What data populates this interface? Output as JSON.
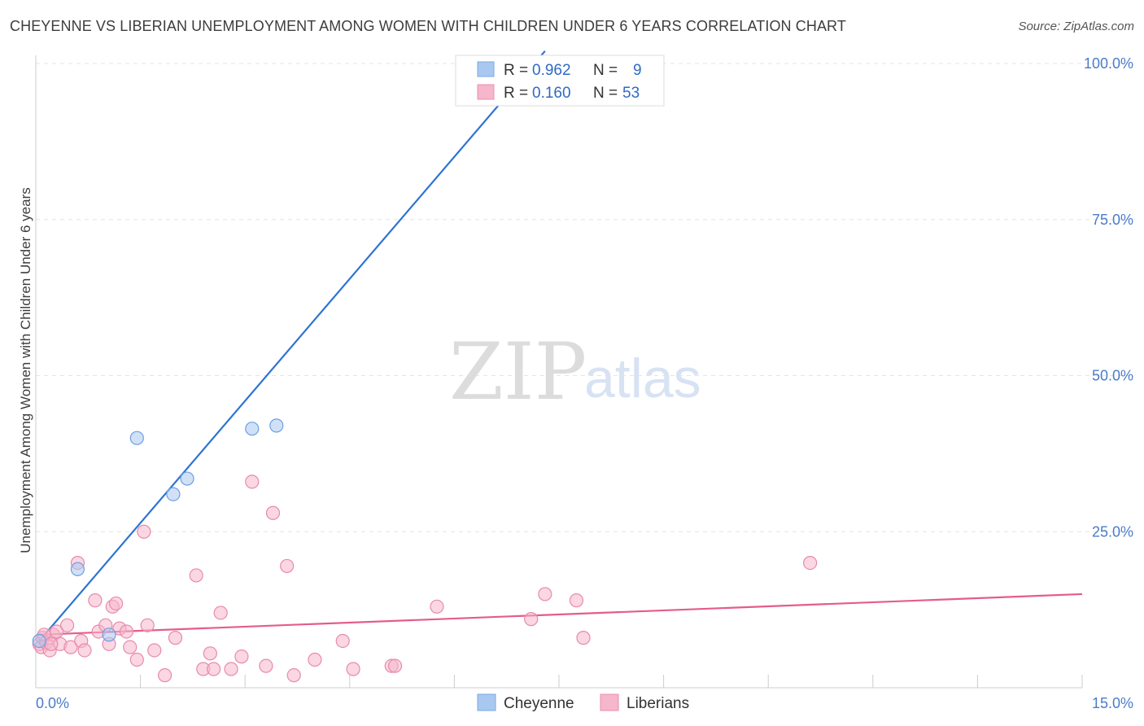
{
  "title": "CHEYENNE VS LIBERIAN UNEMPLOYMENT AMONG WOMEN WITH CHILDREN UNDER 6 YEARS CORRELATION CHART",
  "source": "Source: ZipAtlas.com",
  "watermark": {
    "zip": "ZIP",
    "atlas": "atlas"
  },
  "legend_top": {
    "rows": [
      {
        "r_label": "R =",
        "r_value": "0.962",
        "n_label": "N =",
        "n_value": "9"
      },
      {
        "r_label": "R =",
        "r_value": "0.160",
        "n_label": "N =",
        "n_value": "53"
      }
    ]
  },
  "legend_bottom": [
    "Cheyenne",
    "Liberians"
  ],
  "chart_data": {
    "type": "scatter",
    "ylabel": "Unemployment Among Women with Children Under 6 years",
    "xlim": [
      0,
      15
    ],
    "ylim": [
      0,
      100
    ],
    "x_tick_labels": [
      "0.0%",
      "15.0%"
    ],
    "y_tick_labels": [
      "25.0%",
      "50.0%",
      "75.0%",
      "100.0%"
    ],
    "y_ticks": [
      25,
      50,
      75,
      100
    ],
    "colors": {
      "cheyenne": "#a9c8f0",
      "cheyenne_line": "#2e74d3",
      "liberians": "#f6b6cb",
      "liberians_line": "#e45c8c"
    },
    "series": [
      {
        "name": "Cheyenne",
        "points": [
          [
            0.05,
            7.5
          ],
          [
            0.6,
            19
          ],
          [
            1.45,
            40
          ],
          [
            1.97,
            31
          ],
          [
            2.17,
            33.5
          ],
          [
            3.1,
            41.5
          ],
          [
            3.45,
            42
          ],
          [
            7.3,
            100
          ],
          [
            1.05,
            8.5
          ]
        ],
        "trend": [
          [
            0.05,
            7.5
          ],
          [
            7.3,
            102
          ]
        ]
      },
      {
        "name": "Liberians",
        "points": [
          [
            0.05,
            7
          ],
          [
            0.08,
            6.5
          ],
          [
            0.1,
            8
          ],
          [
            0.15,
            7.2
          ],
          [
            0.2,
            6
          ],
          [
            0.25,
            8.5
          ],
          [
            0.3,
            9
          ],
          [
            0.35,
            7
          ],
          [
            0.45,
            10
          ],
          [
            0.5,
            6.5
          ],
          [
            0.6,
            20
          ],
          [
            0.65,
            7.5
          ],
          [
            0.7,
            6
          ],
          [
            0.85,
            14
          ],
          [
            0.9,
            9
          ],
          [
            1.0,
            10
          ],
          [
            1.05,
            7
          ],
          [
            1.1,
            13
          ],
          [
            1.15,
            13.5
          ],
          [
            1.2,
            9.5
          ],
          [
            1.3,
            9
          ],
          [
            1.35,
            6.5
          ],
          [
            1.45,
            4.5
          ],
          [
            1.55,
            25
          ],
          [
            1.6,
            10
          ],
          [
            1.7,
            6
          ],
          [
            1.85,
            2
          ],
          [
            2.0,
            8
          ],
          [
            2.3,
            18
          ],
          [
            2.4,
            3
          ],
          [
            2.5,
            5.5
          ],
          [
            2.55,
            3
          ],
          [
            2.65,
            12
          ],
          [
            2.8,
            3
          ],
          [
            2.95,
            5
          ],
          [
            3.1,
            33
          ],
          [
            3.3,
            3.5
          ],
          [
            3.4,
            28
          ],
          [
            3.6,
            19.5
          ],
          [
            3.7,
            2
          ],
          [
            4.0,
            4.5
          ],
          [
            4.4,
            7.5
          ],
          [
            4.55,
            3
          ],
          [
            5.1,
            3.5
          ],
          [
            5.15,
            3.5
          ],
          [
            5.75,
            13
          ],
          [
            7.1,
            11
          ],
          [
            7.3,
            15
          ],
          [
            7.75,
            14
          ],
          [
            7.85,
            8
          ],
          [
            11.1,
            20
          ],
          [
            0.12,
            8.5
          ],
          [
            0.22,
            7
          ]
        ],
        "trend": [
          [
            0.05,
            8.5
          ],
          [
            15,
            15
          ]
        ]
      }
    ]
  }
}
